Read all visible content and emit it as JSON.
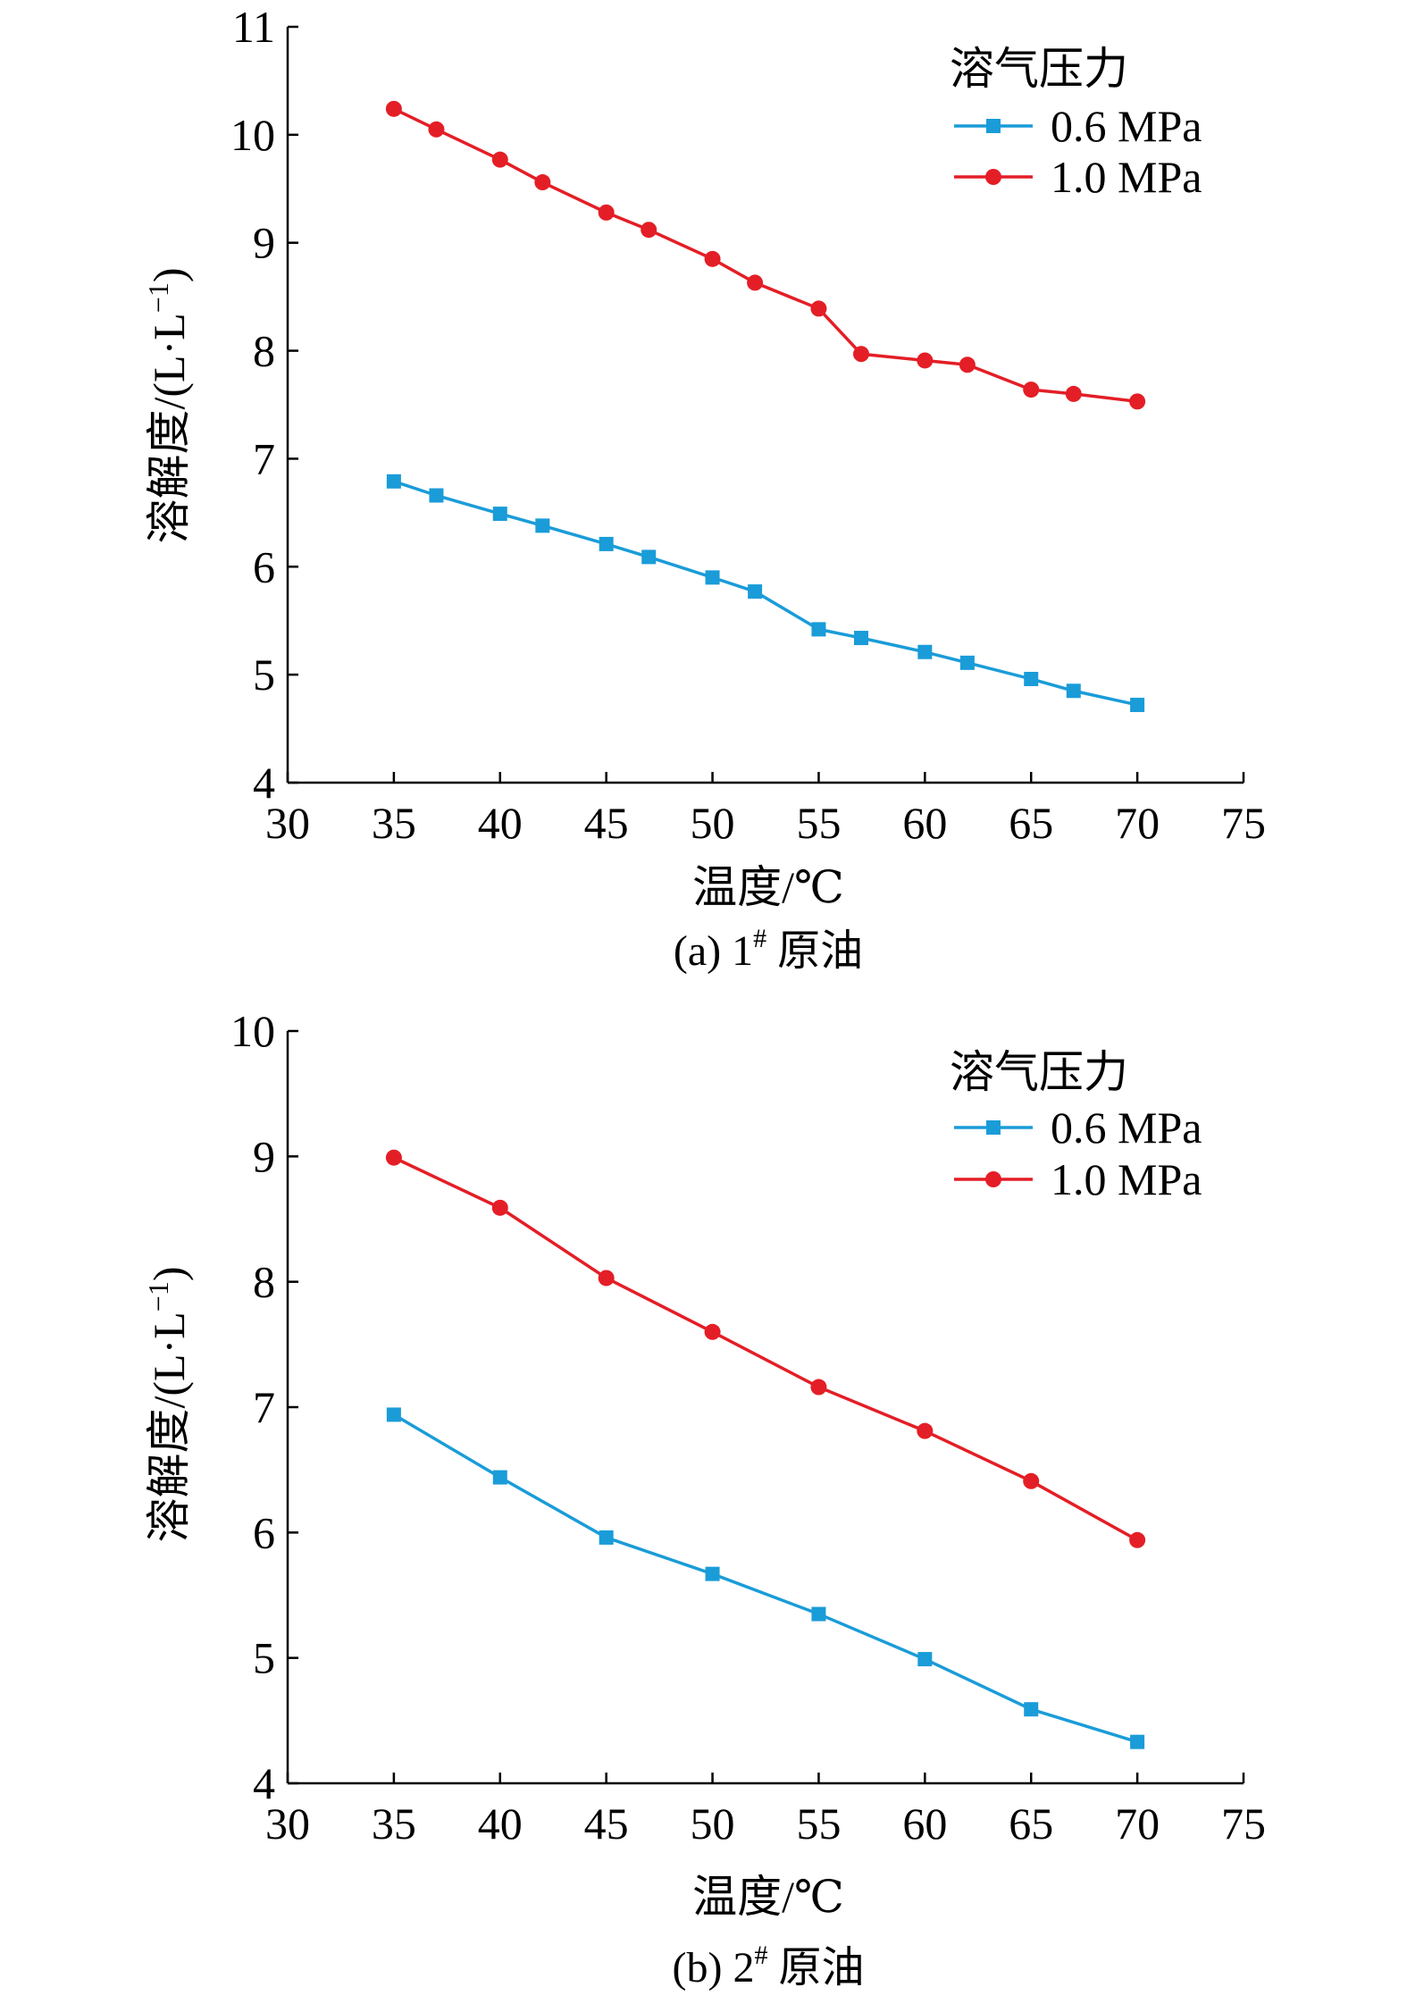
{
  "colors": {
    "series_0_6": "#1a9cd8",
    "series_1_0": "#e41e26",
    "axis": "#000000"
  },
  "chart_data": [
    {
      "type": "line",
      "caption": "(a) 1# 原油",
      "caption_prefix": "(a) 1",
      "caption_sup": "#",
      "caption_suffix": " 原油",
      "xlabel": "温度/℃",
      "ylabel": "溶解度/(L·L",
      "ylabel_sup": "−1",
      "ylabel_close": ")",
      "xlim": [
        30,
        75
      ],
      "ylim": [
        4,
        11
      ],
      "xticks": [
        30,
        35,
        40,
        45,
        50,
        55,
        60,
        65,
        70,
        75
      ],
      "yticks": [
        4,
        5,
        6,
        7,
        8,
        9,
        10,
        11
      ],
      "legend_title": "溶气压力",
      "legend_position": "top-right",
      "grid": false,
      "series": [
        {
          "name": "0.6 MPa",
          "marker": "square",
          "color": "#1a9cd8",
          "x": [
            35,
            37,
            40,
            42,
            45,
            47,
            50,
            52,
            55,
            57,
            60,
            62,
            65,
            67,
            70
          ],
          "y": [
            6.79,
            6.66,
            6.49,
            6.38,
            6.21,
            6.09,
            5.9,
            5.77,
            5.42,
            5.34,
            5.21,
            5.11,
            4.96,
            4.85,
            4.72
          ]
        },
        {
          "name": "1.0 MPa",
          "marker": "circle",
          "color": "#e41e26",
          "x": [
            35,
            37,
            40,
            42,
            45,
            47,
            50,
            52,
            55,
            57,
            60,
            62,
            65,
            67,
            70
          ],
          "y": [
            10.24,
            10.05,
            9.77,
            9.56,
            9.28,
            9.12,
            8.85,
            8.63,
            8.39,
            7.97,
            7.91,
            7.87,
            7.64,
            7.6,
            7.53
          ]
        }
      ]
    },
    {
      "type": "line",
      "caption": "(b) 2# 原油",
      "caption_prefix": "(b) 2",
      "caption_sup": "#",
      "caption_suffix": " 原油",
      "xlabel": "温度/℃",
      "ylabel": "溶解度/(L·L",
      "ylabel_sup": "−1",
      "ylabel_close": ")",
      "xlim": [
        30,
        75
      ],
      "ylim": [
        4,
        10
      ],
      "xticks": [
        30,
        35,
        40,
        45,
        50,
        55,
        60,
        65,
        70,
        75
      ],
      "yticks": [
        4,
        5,
        6,
        7,
        8,
        9,
        10
      ],
      "legend_title": "溶气压力",
      "legend_position": "top-right",
      "grid": false,
      "series": [
        {
          "name": "0.6 MPa",
          "marker": "square",
          "color": "#1a9cd8",
          "x": [
            35,
            40,
            45,
            50,
            55,
            60,
            65,
            70
          ],
          "y": [
            6.94,
            6.44,
            5.96,
            5.67,
            5.35,
            4.99,
            4.59,
            4.33
          ]
        },
        {
          "name": "1.0 MPa",
          "marker": "circle",
          "color": "#e41e26",
          "x": [
            35,
            40,
            45,
            50,
            55,
            60,
            65,
            70
          ],
          "y": [
            8.99,
            8.59,
            8.03,
            7.6,
            7.16,
            6.81,
            6.41,
            5.94
          ]
        }
      ]
    }
  ]
}
